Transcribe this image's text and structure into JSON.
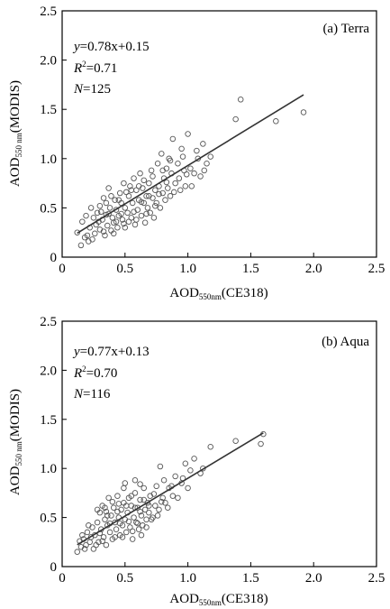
{
  "chart_data": [
    {
      "type": "scatter",
      "title": "(a)  Terra",
      "xlabel": {
        "main": "AOD",
        "sub": "550nm",
        "rest": "(CE318)"
      },
      "ylabel": {
        "main": "AOD",
        "sub": "550 nm",
        "rest": "(MODIS)"
      },
      "xlim": [
        0,
        2.5
      ],
      "ylim": [
        0,
        2.5
      ],
      "xticks": [
        "0",
        "0.5",
        "1.0",
        "1.5",
        "2.0",
        "2.5"
      ],
      "yticks": [
        "0",
        "0.5",
        "1.0",
        "1.5",
        "2.0",
        "2.5"
      ],
      "grid": false,
      "annotations": {
        "eq_y": "y",
        "eq_rest": "=0.78x+0.15",
        "r2_r": "R",
        "r2_sup": "2",
        "r2_rest": "=0.71",
        "n_n": "N",
        "n_rest": "=125"
      },
      "fit": {
        "slope": 0.78,
        "intercept": 0.15,
        "x_range": [
          0.12,
          1.92
        ]
      },
      "points": [
        [
          0.12,
          0.25
        ],
        [
          0.15,
          0.12
        ],
        [
          0.18,
          0.2
        ],
        [
          0.2,
          0.22
        ],
        [
          0.22,
          0.3
        ],
        [
          0.24,
          0.18
        ],
        [
          0.25,
          0.4
        ],
        [
          0.27,
          0.33
        ],
        [
          0.28,
          0.45
        ],
        [
          0.3,
          0.28
        ],
        [
          0.3,
          0.52
        ],
        [
          0.32,
          0.38
        ],
        [
          0.33,
          0.6
        ],
        [
          0.34,
          0.22
        ],
        [
          0.35,
          0.43
        ],
        [
          0.36,
          0.32
        ],
        [
          0.37,
          0.7
        ],
        [
          0.38,
          0.5
        ],
        [
          0.39,
          0.27
        ],
        [
          0.4,
          0.4
        ],
        [
          0.41,
          0.35
        ],
        [
          0.42,
          0.58
        ],
        [
          0.43,
          0.48
        ],
        [
          0.44,
          0.3
        ],
        [
          0.45,
          0.42
        ],
        [
          0.46,
          0.65
        ],
        [
          0.47,
          0.55
        ],
        [
          0.48,
          0.38
        ],
        [
          0.49,
          0.75
        ],
        [
          0.5,
          0.5
        ],
        [
          0.5,
          0.3
        ],
        [
          0.52,
          0.45
        ],
        [
          0.53,
          0.62
        ],
        [
          0.54,
          0.72
        ],
        [
          0.55,
          0.4
        ],
        [
          0.56,
          0.55
        ],
        [
          0.57,
          0.8
        ],
        [
          0.58,
          0.33
        ],
        [
          0.59,
          0.68
        ],
        [
          0.6,
          0.48
        ],
        [
          0.61,
          0.58
        ],
        [
          0.62,
          0.85
        ],
        [
          0.63,
          0.42
        ],
        [
          0.64,
          0.7
        ],
        [
          0.65,
          0.55
        ],
        [
          0.66,
          0.35
        ],
        [
          0.67,
          0.62
        ],
        [
          0.68,
          0.5
        ],
        [
          0.69,
          0.75
        ],
        [
          0.7,
          0.45
        ],
        [
          0.71,
          0.88
        ],
        [
          0.72,
          0.6
        ],
        [
          0.73,
          0.4
        ],
        [
          0.74,
          0.68
        ],
        [
          0.75,
          0.55
        ],
        [
          0.76,
          0.95
        ],
        [
          0.77,
          0.72
        ],
        [
          0.78,
          0.5
        ],
        [
          0.79,
          1.05
        ],
        [
          0.8,
          0.65
        ],
        [
          0.81,
          0.8
        ],
        [
          0.82,
          0.58
        ],
        [
          0.83,
          0.9
        ],
        [
          0.84,
          0.7
        ],
        [
          0.85,
          1.0
        ],
        [
          0.86,
          0.62
        ],
        [
          0.87,
          0.85
        ],
        [
          0.88,
          1.2
        ],
        [
          0.9,
          0.75
        ],
        [
          0.92,
          0.95
        ],
        [
          0.94,
          0.68
        ],
        [
          0.95,
          1.1
        ],
        [
          0.97,
          0.88
        ],
        [
          0.98,
          0.72
        ],
        [
          1.0,
          1.25
        ],
        [
          1.02,
          0.9
        ],
        [
          1.05,
          0.85
        ],
        [
          1.08,
          1.0
        ],
        [
          1.1,
          0.82
        ],
        [
          1.12,
          1.15
        ],
        [
          1.15,
          0.95
        ],
        [
          1.38,
          1.4
        ],
        [
          1.42,
          1.6
        ],
        [
          1.7,
          1.38
        ],
        [
          1.92,
          1.47
        ],
        [
          0.16,
          0.36
        ],
        [
          0.19,
          0.42
        ],
        [
          0.21,
          0.16
        ],
        [
          0.23,
          0.5
        ],
        [
          0.26,
          0.24
        ],
        [
          0.29,
          0.36
        ],
        [
          0.31,
          0.46
        ],
        [
          0.33,
          0.26
        ],
        [
          0.35,
          0.55
        ],
        [
          0.37,
          0.44
        ],
        [
          0.39,
          0.62
        ],
        [
          0.41,
          0.24
        ],
        [
          0.43,
          0.36
        ],
        [
          0.45,
          0.58
        ],
        [
          0.47,
          0.44
        ],
        [
          0.49,
          0.34
        ],
        [
          0.51,
          0.66
        ],
        [
          0.53,
          0.36
        ],
        [
          0.55,
          0.68
        ],
        [
          0.57,
          0.46
        ],
        [
          0.59,
          0.38
        ],
        [
          0.61,
          0.72
        ],
        [
          0.63,
          0.56
        ],
        [
          0.65,
          0.78
        ],
        [
          0.67,
          0.44
        ],
        [
          0.69,
          0.62
        ],
        [
          0.72,
          0.82
        ],
        [
          0.74,
          0.52
        ],
        [
          0.77,
          0.64
        ],
        [
          0.8,
          0.88
        ],
        [
          0.83,
          0.76
        ],
        [
          0.86,
          0.98
        ],
        [
          0.89,
          0.66
        ],
        [
          0.93,
          0.8
        ],
        [
          0.96,
          1.02
        ],
        [
          0.99,
          0.84
        ],
        [
          1.03,
          0.72
        ],
        [
          1.07,
          1.08
        ],
        [
          1.13,
          0.88
        ],
        [
          1.18,
          1.02
        ]
      ]
    },
    {
      "type": "scatter",
      "title": "(b)  Aqua",
      "xlabel": {
        "main": "AOD",
        "sub": "550nm",
        "rest": "(CE318)"
      },
      "ylabel": {
        "main": "AOD",
        "sub": "550 nm",
        "rest": "(MODIS)"
      },
      "xlim": [
        0,
        2.5
      ],
      "ylim": [
        0,
        2.5
      ],
      "xticks": [
        "0",
        "0.5",
        "1.0",
        "1.5",
        "2.0",
        "2.5"
      ],
      "yticks": [
        "0",
        "0.5",
        "1.0",
        "1.5",
        "2.0",
        "2.5"
      ],
      "grid": false,
      "annotations": {
        "eq_y": "y",
        "eq_rest": "=0.77x+0.13",
        "r2_r": "R",
        "r2_sup": "2",
        "r2_rest": "=0.70",
        "n_n": "N",
        "n_rest": "=116"
      },
      "fit": {
        "slope": 0.77,
        "intercept": 0.13,
        "x_range": [
          0.12,
          1.6
        ]
      },
      "points": [
        [
          0.12,
          0.15
        ],
        [
          0.15,
          0.2
        ],
        [
          0.17,
          0.28
        ],
        [
          0.19,
          0.22
        ],
        [
          0.2,
          0.35
        ],
        [
          0.22,
          0.25
        ],
        [
          0.24,
          0.4
        ],
        [
          0.25,
          0.18
        ],
        [
          0.26,
          0.32
        ],
        [
          0.28,
          0.45
        ],
        [
          0.29,
          0.25
        ],
        [
          0.3,
          0.55
        ],
        [
          0.31,
          0.38
        ],
        [
          0.32,
          0.62
        ],
        [
          0.33,
          0.3
        ],
        [
          0.34,
          0.48
        ],
        [
          0.35,
          0.22
        ],
        [
          0.36,
          0.42
        ],
        [
          0.37,
          0.7
        ],
        [
          0.38,
          0.35
        ],
        [
          0.39,
          0.52
        ],
        [
          0.4,
          0.28
        ],
        [
          0.41,
          0.6
        ],
        [
          0.42,
          0.45
        ],
        [
          0.43,
          0.38
        ],
        [
          0.44,
          0.72
        ],
        [
          0.45,
          0.5
        ],
        [
          0.46,
          0.32
        ],
        [
          0.47,
          0.58
        ],
        [
          0.48,
          0.42
        ],
        [
          0.49,
          0.65
        ],
        [
          0.5,
          0.48
        ],
        [
          0.5,
          0.85
        ],
        [
          0.51,
          0.35
        ],
        [
          0.52,
          0.55
        ],
        [
          0.53,
          0.7
        ],
        [
          0.54,
          0.4
        ],
        [
          0.55,
          0.62
        ],
        [
          0.56,
          0.28
        ],
        [
          0.57,
          0.5
        ],
        [
          0.58,
          0.75
        ],
        [
          0.59,
          0.45
        ],
        [
          0.6,
          0.6
        ],
        [
          0.61,
          0.38
        ],
        [
          0.62,
          0.68
        ],
        [
          0.63,
          0.52
        ],
        [
          0.64,
          0.42
        ],
        [
          0.65,
          0.8
        ],
        [
          0.66,
          0.58
        ],
        [
          0.67,
          0.48
        ],
        [
          0.68,
          0.65
        ],
        [
          0.69,
          0.55
        ],
        [
          0.7,
          0.72
        ],
        [
          0.72,
          0.5
        ],
        [
          0.74,
          0.62
        ],
        [
          0.75,
          0.82
        ],
        [
          0.77,
          0.58
        ],
        [
          0.78,
          1.02
        ],
        [
          0.8,
          0.7
        ],
        [
          0.82,
          0.65
        ],
        [
          0.85,
          0.8
        ],
        [
          0.88,
          0.72
        ],
        [
          0.9,
          0.92
        ],
        [
          0.95,
          0.85
        ],
        [
          0.98,
          1.05
        ],
        [
          1.0,
          0.8
        ],
        [
          1.05,
          1.1
        ],
        [
          1.1,
          0.95
        ],
        [
          1.18,
          1.22
        ],
        [
          1.38,
          1.28
        ],
        [
          1.58,
          1.25
        ],
        [
          1.6,
          1.35
        ],
        [
          0.14,
          0.26
        ],
        [
          0.16,
          0.32
        ],
        [
          0.18,
          0.18
        ],
        [
          0.21,
          0.42
        ],
        [
          0.23,
          0.3
        ],
        [
          0.27,
          0.22
        ],
        [
          0.28,
          0.58
        ],
        [
          0.3,
          0.34
        ],
        [
          0.32,
          0.26
        ],
        [
          0.34,
          0.6
        ],
        [
          0.36,
          0.52
        ],
        [
          0.38,
          0.44
        ],
        [
          0.4,
          0.66
        ],
        [
          0.42,
          0.3
        ],
        [
          0.44,
          0.56
        ],
        [
          0.46,
          0.44
        ],
        [
          0.48,
          0.3
        ],
        [
          0.49,
          0.8
        ],
        [
          0.51,
          0.62
        ],
        [
          0.53,
          0.46
        ],
        [
          0.55,
          0.72
        ],
        [
          0.56,
          0.36
        ],
        [
          0.58,
          0.6
        ],
        [
          0.6,
          0.44
        ],
        [
          0.62,
          0.56
        ],
        [
          0.63,
          0.32
        ],
        [
          0.65,
          0.68
        ],
        [
          0.67,
          0.4
        ],
        [
          0.69,
          0.62
        ],
        [
          0.71,
          0.48
        ],
        [
          0.73,
          0.74
        ],
        [
          0.76,
          0.52
        ],
        [
          0.79,
          0.66
        ],
        [
          0.81,
          0.88
        ],
        [
          0.84,
          0.6
        ],
        [
          0.87,
          0.82
        ],
        [
          0.92,
          0.7
        ],
        [
          0.96,
          0.9
        ],
        [
          1.02,
          0.98
        ],
        [
          1.12,
          1.0
        ],
        [
          0.58,
          0.88
        ],
        [
          0.62,
          0.84
        ],
        [
          0.45,
          0.64
        ],
        [
          0.35,
          0.56
        ]
      ]
    }
  ]
}
